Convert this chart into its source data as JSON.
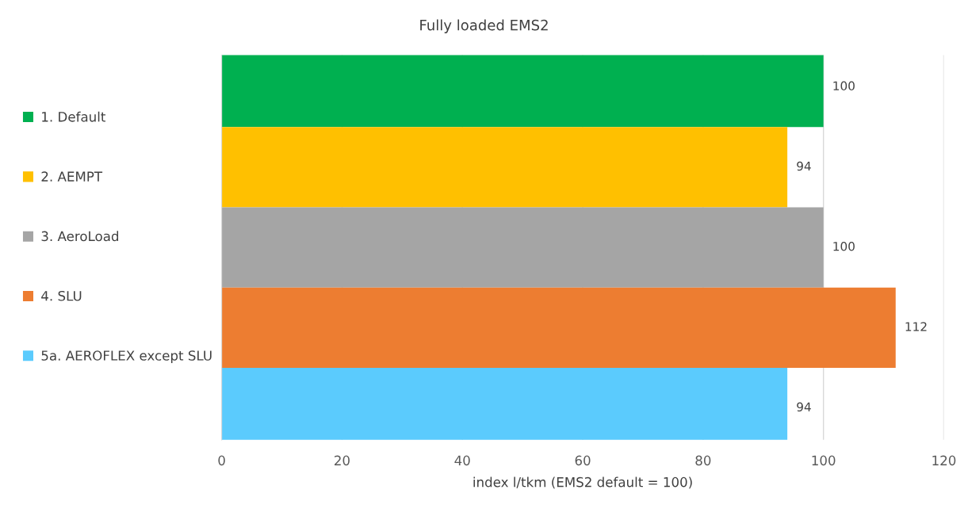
{
  "chart_data": {
    "type": "bar",
    "orientation": "horizontal",
    "title": "Fully loaded EMS2",
    "xlabel": "index l/tkm (EMS2 default = 100)",
    "categories": [
      null
    ],
    "series": [
      {
        "name": "1. Default",
        "color": "#00b050",
        "values": [
          100
        ]
      },
      {
        "name": "2. AEMPT",
        "color": "#ffc000",
        "values": [
          94
        ]
      },
      {
        "name": "3. AeroLoad",
        "color": "#a5a5a5",
        "values": [
          100
        ]
      },
      {
        "name": "4. SLU",
        "color": "#ed7d31",
        "values": [
          112
        ]
      },
      {
        "name": "5a. AEROFLEX except SLU",
        "color": "#5bcbfd",
        "values": [
          94
        ]
      }
    ],
    "value_labels": [
      [
        "100"
      ],
      [
        "94"
      ],
      [
        "100"
      ],
      [
        "112"
      ],
      [
        "94"
      ]
    ],
    "xlim": [
      0,
      120
    ],
    "xticks": [
      0,
      20,
      40,
      60,
      80,
      100,
      120
    ],
    "grid": "x",
    "legend": "left",
    "tick_labels": "x"
  }
}
